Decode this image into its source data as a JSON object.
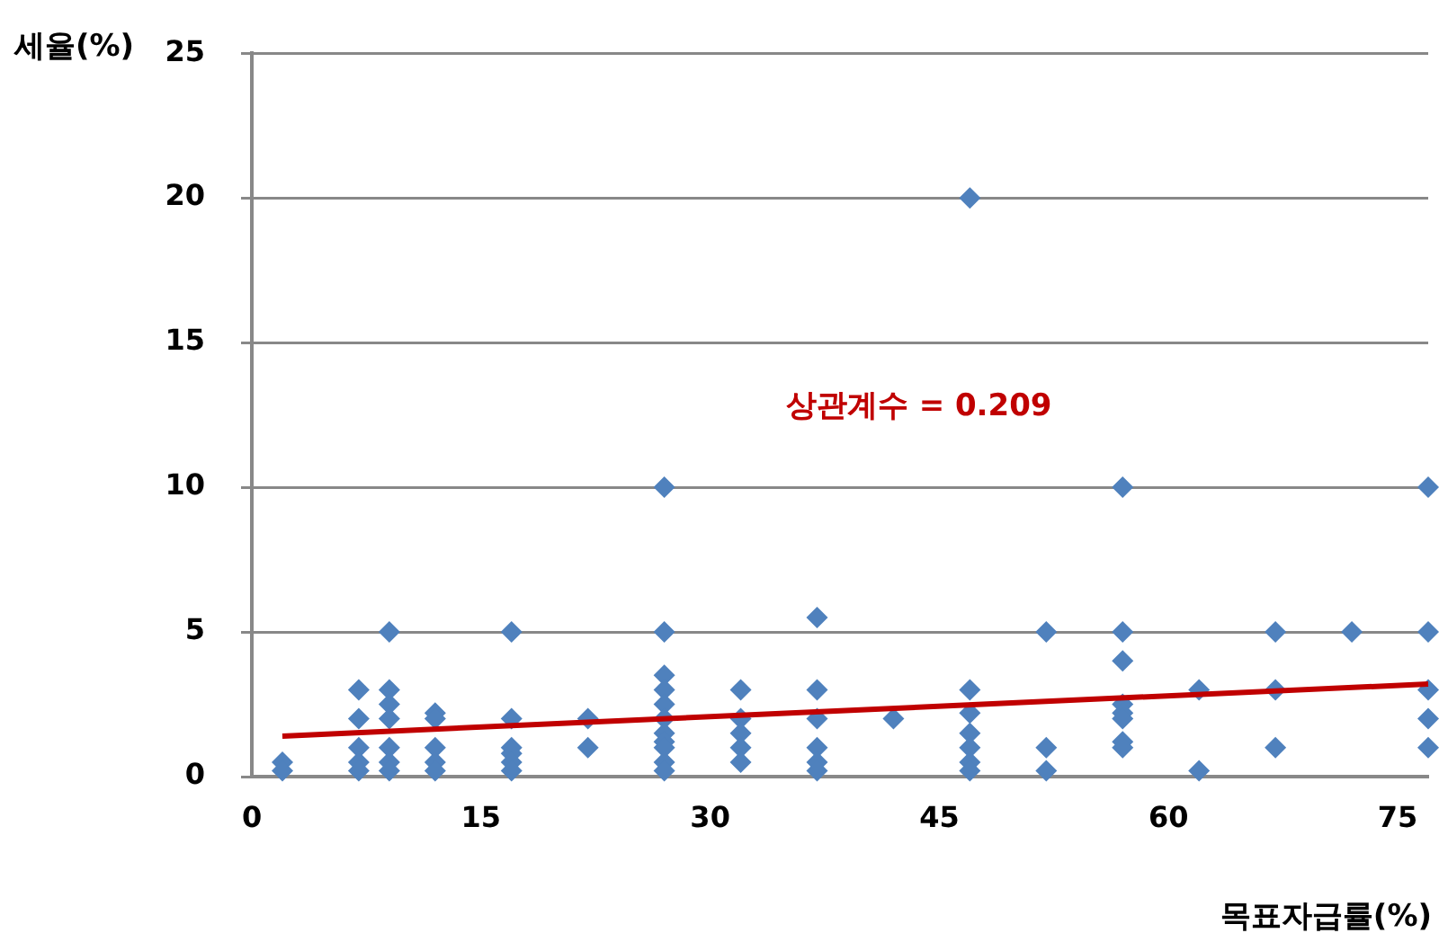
{
  "chart_data": {
    "type": "scatter",
    "xlabel": "목표자급률(%)",
    "ylabel": "세율(%)",
    "annotations": [
      "상관계수 = 0.209"
    ],
    "xlim": [
      0,
      77
    ],
    "xticks": [
      0,
      15,
      30,
      45,
      60,
      75
    ],
    "ylim": [
      0,
      25
    ],
    "yticks": [
      0,
      5,
      10,
      15,
      20,
      25
    ],
    "grid": "y",
    "legend": false,
    "series": [
      {
        "marker": "diamond",
        "color": "#4f81bd",
        "x": [
          2,
          2,
          7,
          7,
          7,
          7,
          7,
          9,
          9,
          9,
          9,
          9,
          9,
          9,
          12,
          12,
          12,
          12,
          12,
          17,
          17,
          17,
          17,
          17,
          17,
          22,
          22,
          27,
          27,
          27,
          27,
          27,
          27,
          27,
          27,
          27,
          27,
          27,
          32,
          32,
          32,
          32,
          32,
          37,
          37,
          37,
          37,
          37,
          37,
          42,
          47,
          47,
          47,
          47,
          47,
          47,
          47,
          52,
          52,
          52,
          57,
          57,
          57,
          57,
          57,
          57,
          57,
          57,
          62,
          62,
          67,
          67,
          67,
          72,
          77,
          77,
          77,
          77,
          77
        ],
        "values": [
          0.5,
          0.2,
          3,
          2,
          1,
          0.5,
          0.2,
          5,
          3,
          2.5,
          2,
          1,
          0.5,
          0.2,
          2.2,
          2,
          1,
          0.5,
          0.2,
          5,
          2,
          1,
          0.8,
          0.5,
          0.2,
          2,
          1,
          10,
          5,
          3.5,
          3,
          2.5,
          2,
          1.5,
          1.2,
          1,
          0.5,
          0.2,
          3,
          2,
          1.5,
          1,
          0.5,
          5.5,
          3,
          2,
          1,
          0.5,
          0.2,
          2,
          20,
          3,
          2.2,
          1.5,
          1,
          0.5,
          0.2,
          5,
          1,
          0.2,
          10,
          5,
          4,
          2.5,
          2.2,
          2,
          1.2,
          1,
          3,
          0.2,
          5,
          3,
          1,
          5,
          10,
          5,
          3,
          2,
          1
        ]
      },
      {
        "type": "line",
        "marker": "none",
        "color": "#c00000",
        "x": [
          2,
          77
        ],
        "values": [
          1.4,
          3.2
        ]
      }
    ]
  }
}
